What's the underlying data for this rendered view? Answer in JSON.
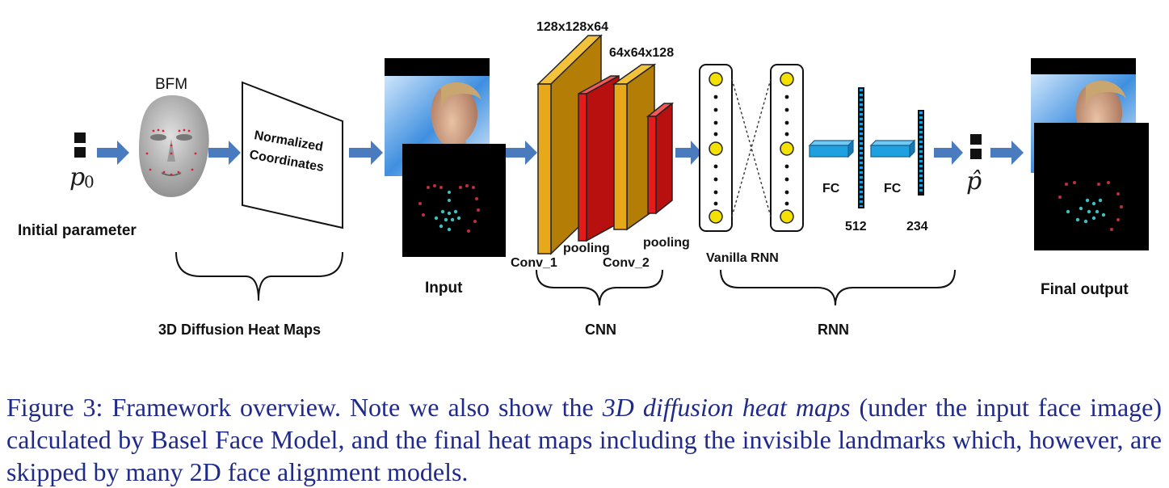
{
  "labels": {
    "bfm": "BFM",
    "normalized_line1": "Normalized",
    "normalized_line2": "Coordinates",
    "initial_parameter": "Initial parameter",
    "p0_symbol": "p",
    "p0_subscript": "0",
    "diffusion_group": "3D Diffusion Heat Maps",
    "input": "Input",
    "dim1": "128x128x64",
    "dim2": "64x64x128",
    "conv1": "Conv_1",
    "pooling1": "pooling",
    "conv2": "Conv_2",
    "pooling2": "pooling",
    "cnn_group": "CNN",
    "vanilla_rnn": "Vanilla RNN",
    "rnn_group": "RNN",
    "fc1": "FC",
    "fc2": "FC",
    "fc1_size": "512",
    "fc2_size": "234",
    "phat_symbol": "p̂",
    "final_output": "Final output"
  },
  "caption": {
    "lead": "Figure 3: Framework overview. Note we also show the ",
    "emph": "3D diffusion heat maps",
    "rest": " (under the input face image) calculated by Basel Face Model, and the final heat maps including the invisible landmarks which, however, are skipped by many 2D face alignment models."
  },
  "colors": {
    "arrow": "#4a7bbf",
    "conv": "#e7a81a",
    "pool": "#e51b1b",
    "fc": "#1fa0e0",
    "caption": "#1f2a8a"
  }
}
